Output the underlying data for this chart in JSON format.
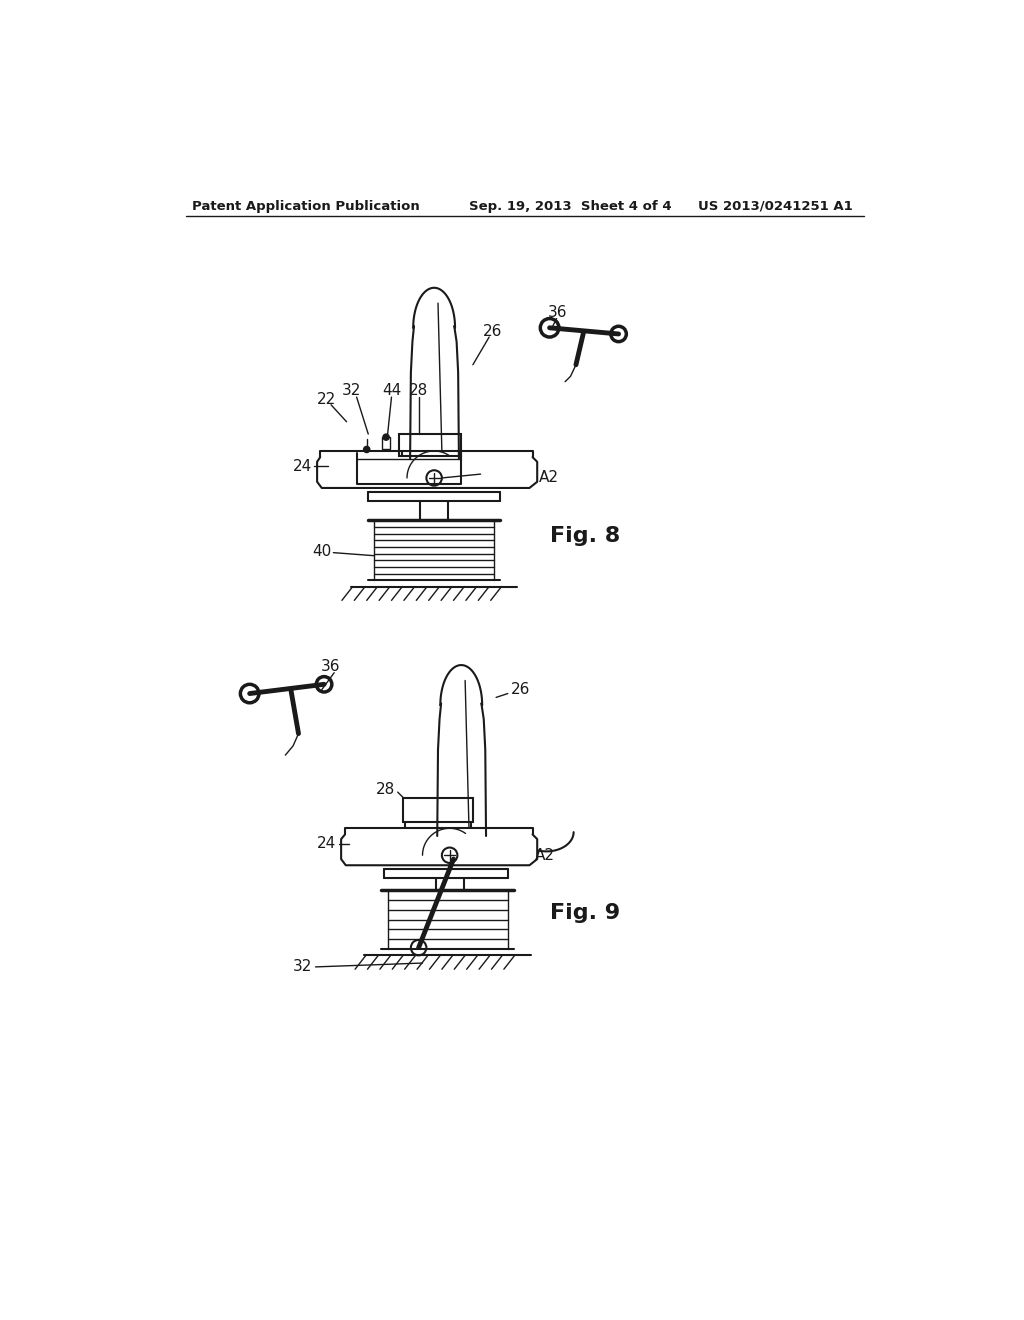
{
  "bg_color": "#ffffff",
  "line_color": "#1a1a1a",
  "header_text": "Patent Application Publication",
  "header_date": "Sep. 19, 2013  Sheet 4 of 4",
  "header_patent": "US 2013/0241251 A1",
  "fig8_label": "Fig. 8",
  "fig9_label": "Fig. 9"
}
